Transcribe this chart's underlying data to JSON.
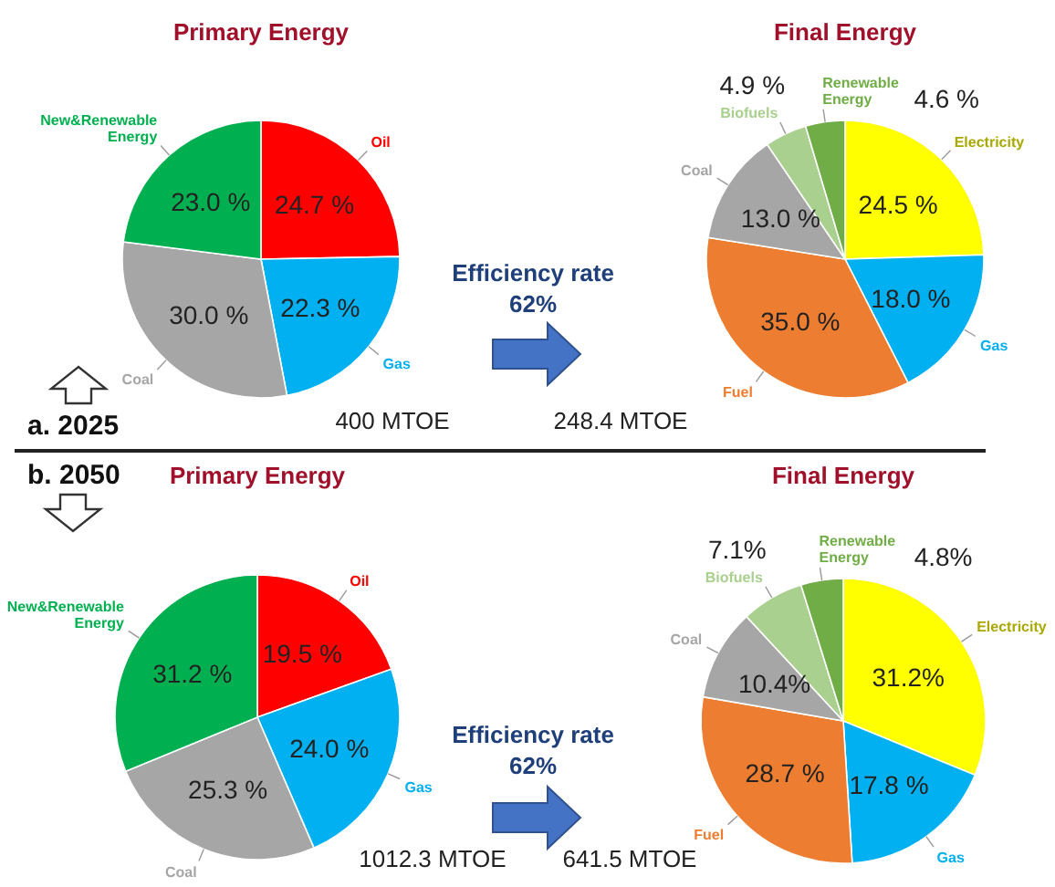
{
  "chart_data": [
    {
      "type": "pie",
      "title": "Primary Energy",
      "categories": [
        "Oil",
        "Gas",
        "Coal",
        "New&Renewable Energy"
      ],
      "values": [
        24.7,
        22.3,
        30.0,
        23.0
      ],
      "colors": [
        "#ff0000",
        "#00b0f0",
        "#a6a6a6",
        "#00b050"
      ],
      "value_labels": [
        "24.7 %",
        "22.3 %",
        "30.0 %",
        "23.0 %"
      ],
      "annotations": [
        "a. 2025",
        "400 MTOE"
      ]
    },
    {
      "type": "pie",
      "title": "Final Energy",
      "categories": [
        "Electricity",
        "Gas",
        "Fuel",
        "Coal",
        "Biofuels",
        "Renewable Energy"
      ],
      "values": [
        24.5,
        18.0,
        35.0,
        13.0,
        4.9,
        4.6
      ],
      "colors": [
        "#ffff00",
        "#00b0f0",
        "#ed7d31",
        "#a6a6a6",
        "#a9d08e",
        "#70ad47"
      ],
      "value_labels": [
        "24.5 %",
        "18.0 %",
        "35.0 %",
        "13.0 %",
        "4.9 %",
        "4.6 %"
      ],
      "annotations": [
        "Efficiency rate",
        "62%",
        "248.4 MTOE"
      ]
    },
    {
      "type": "pie",
      "title": "Primary Energy",
      "categories": [
        "Oil",
        "Gas",
        "Coal",
        "New&Renewable Energy"
      ],
      "values": [
        19.5,
        24.0,
        25.3,
        31.2
      ],
      "colors": [
        "#ff0000",
        "#00b0f0",
        "#a6a6a6",
        "#00b050"
      ],
      "value_labels": [
        "19.5 %",
        "24.0 %",
        "25.3 %",
        "31.2 %"
      ],
      "annotations": [
        "b. 2050",
        "1012.3 MTOE"
      ]
    },
    {
      "type": "pie",
      "title": "Final Energy",
      "categories": [
        "Electricity",
        "Gas",
        "Fuel",
        "Coal",
        "Biofuels",
        "Renewable Energy"
      ],
      "values": [
        31.2,
        17.8,
        28.7,
        10.4,
        7.1,
        4.8
      ],
      "colors": [
        "#ffff00",
        "#00b0f0",
        "#ed7d31",
        "#a6a6a6",
        "#a9d08e",
        "#70ad47"
      ],
      "value_labels": [
        "31.2%",
        "17.8 %",
        "28.7 %",
        "10.4%",
        "7.1%",
        "4.8%"
      ],
      "annotations": [
        "Efficiency rate",
        "62%",
        "641.5 MTOE"
      ]
    }
  ]
}
